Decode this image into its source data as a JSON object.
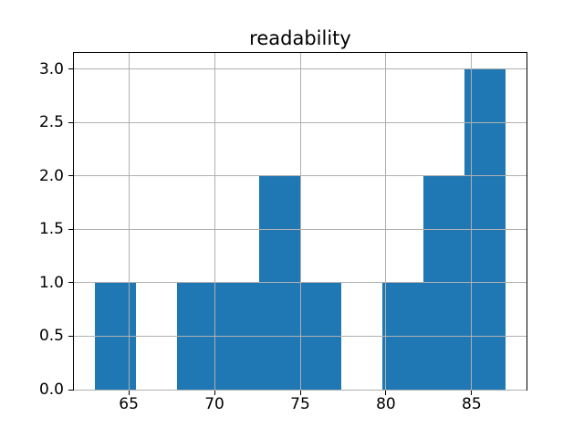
{
  "figure": {
    "background": "#ffffff"
  },
  "chart_data": {
    "type": "histogram",
    "title": "readability",
    "xlabel": "",
    "ylabel": "",
    "bar_color": "#1f77b4",
    "grid_color": "#b0b0b0",
    "spine_color": "#000000",
    "grid": true,
    "grid_above_bars": true,
    "legend": false,
    "bin_edges": [
      63.0,
      65.4,
      67.8,
      70.2,
      72.6,
      75.0,
      77.4,
      79.8,
      82.2,
      84.6,
      87.0
    ],
    "counts": [
      1,
      0,
      1,
      1,
      2,
      1,
      0,
      1,
      2,
      3
    ],
    "xlim": [
      61.8,
      88.2
    ],
    "ylim": [
      0,
      3.15
    ],
    "xticks": [
      65,
      70,
      75,
      80,
      85
    ],
    "xtick_labels": [
      "65",
      "70",
      "75",
      "80",
      "85"
    ],
    "yticks": [
      0.0,
      0.5,
      1.0,
      1.5,
      2.0,
      2.5,
      3.0
    ],
    "ytick_labels": [
      "0.0",
      "0.5",
      "1.0",
      "1.5",
      "2.0",
      "2.5",
      "3.0"
    ]
  }
}
